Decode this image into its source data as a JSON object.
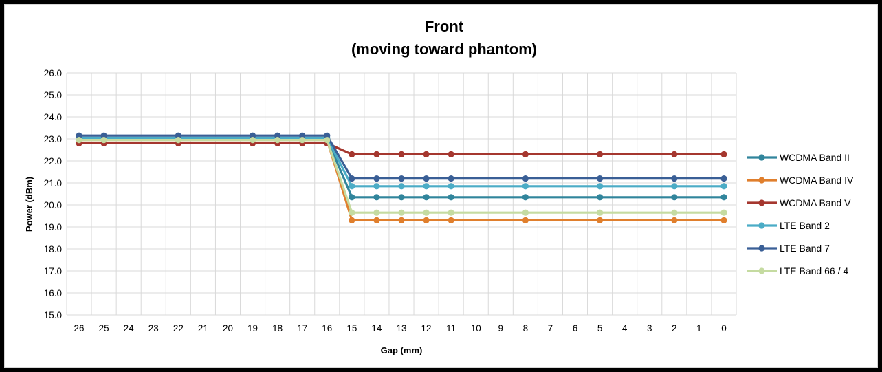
{
  "chart_data": {
    "type": "line",
    "title": "Front",
    "subtitle": "(moving toward phantom)",
    "xlabel": "Gap (mm)",
    "ylabel": "Power (dBm)",
    "ylim": [
      15.0,
      26.0
    ],
    "y_ticks": [
      "26.0",
      "25.0",
      "24.0",
      "23.0",
      "22.0",
      "21.0",
      "20.0",
      "19.0",
      "18.0",
      "17.0",
      "16.0",
      "15.0"
    ],
    "x_axis_reversed": true,
    "x_categories": [
      "26",
      "25",
      "24",
      "23",
      "22",
      "21",
      "20",
      "19",
      "18",
      "17",
      "16",
      "15",
      "14",
      "13",
      "12",
      "11",
      "10",
      "9",
      "8",
      "7",
      "6",
      "5",
      "4",
      "3",
      "2",
      "1",
      "0"
    ],
    "grid": true,
    "legend_position": "right",
    "series": [
      {
        "name": "WCDMA Band II",
        "color": "#31859c",
        "x": [
          26,
          25,
          22,
          19,
          18,
          17,
          16,
          15,
          14,
          13,
          12,
          11,
          8,
          5,
          2,
          0
        ],
        "y": [
          23.0,
          23.0,
          23.0,
          23.0,
          23.0,
          23.0,
          23.0,
          20.35,
          20.35,
          20.35,
          20.35,
          20.35,
          20.35,
          20.35,
          20.35,
          20.35
        ]
      },
      {
        "name": "WCDMA Band IV",
        "color": "#e07f2d",
        "x": [
          26,
          25,
          22,
          19,
          18,
          17,
          16,
          15,
          14,
          13,
          12,
          11,
          8,
          5,
          2,
          0
        ],
        "y": [
          22.95,
          22.95,
          22.95,
          22.95,
          22.95,
          22.95,
          22.95,
          19.3,
          19.3,
          19.3,
          19.3,
          19.3,
          19.3,
          19.3,
          19.3,
          19.3
        ]
      },
      {
        "name": "WCDMA Band V",
        "color": "#a5372f",
        "x": [
          26,
          25,
          22,
          19,
          18,
          17,
          16,
          15,
          14,
          13,
          12,
          11,
          8,
          5,
          2,
          0
        ],
        "y": [
          22.8,
          22.8,
          22.8,
          22.8,
          22.8,
          22.8,
          22.8,
          22.3,
          22.3,
          22.3,
          22.3,
          22.3,
          22.3,
          22.3,
          22.3,
          22.3
        ]
      },
      {
        "name": "LTE Band 2",
        "color": "#4bacc6",
        "x": [
          26,
          25,
          22,
          19,
          18,
          17,
          16,
          15,
          14,
          13,
          12,
          11,
          8,
          5,
          2,
          0
        ],
        "y": [
          23.05,
          23.05,
          23.05,
          23.05,
          23.05,
          23.05,
          23.05,
          20.85,
          20.85,
          20.85,
          20.85,
          20.85,
          20.85,
          20.85,
          20.85,
          20.85
        ]
      },
      {
        "name": "LTE Band 7",
        "color": "#3a5f96",
        "x": [
          26,
          25,
          22,
          19,
          18,
          17,
          16,
          15,
          14,
          13,
          12,
          11,
          8,
          5,
          2,
          0
        ],
        "y": [
          23.15,
          23.15,
          23.15,
          23.15,
          23.15,
          23.15,
          23.15,
          21.2,
          21.2,
          21.2,
          21.2,
          21.2,
          21.2,
          21.2,
          21.2,
          21.2
        ]
      },
      {
        "name": "LTE Band 66 / 4",
        "color": "#c5dba1",
        "x": [
          26,
          25,
          22,
          19,
          18,
          17,
          16,
          15,
          14,
          13,
          12,
          11,
          8,
          5,
          2,
          0
        ],
        "y": [
          22.95,
          22.95,
          22.95,
          22.95,
          22.95,
          22.95,
          22.95,
          19.65,
          19.65,
          19.65,
          19.65,
          19.65,
          19.65,
          19.65,
          19.65,
          19.65
        ]
      }
    ]
  }
}
